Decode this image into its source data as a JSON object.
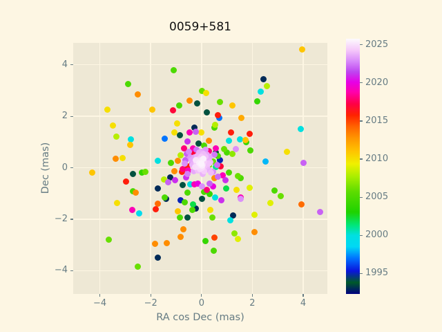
{
  "chart_data": {
    "type": "scatter",
    "title": "0059+581",
    "xlabel": "RA cos Dec (mas)",
    "ylabel": "Dec (mas)",
    "xlim": [
      -5.05,
      4.95
    ],
    "ylim": [
      -4.9,
      4.85
    ],
    "xticks": [
      -4,
      -2,
      0,
      2,
      4
    ],
    "xtick_labels": [
      "−4",
      "−2",
      "0",
      "2",
      "4"
    ],
    "yticks": [
      -4,
      -2,
      0,
      2,
      4
    ],
    "ytick_labels": [
      "−4",
      "−2",
      "0",
      "2",
      "4"
    ],
    "grid": true,
    "legend": "none",
    "colorbar": {
      "label": "",
      "vmin": 1992.3,
      "vmax": 2025.8,
      "ticks": [
        1995,
        2000,
        2005,
        2010,
        2015,
        2020,
        2025
      ],
      "tick_labels": [
        "1995",
        "2000",
        "2005",
        "2010",
        "2015",
        "2020",
        "2025"
      ],
      "colormap": "gist_ncar",
      "stops": [
        [
          0.0,
          "#000080"
        ],
        [
          0.045,
          "#005a28"
        ],
        [
          0.09,
          "#0a14dc"
        ],
        [
          0.14,
          "#0073ff"
        ],
        [
          0.185,
          "#00d8f5"
        ],
        [
          0.23,
          "#00e0e0"
        ],
        [
          0.27,
          "#00e678"
        ],
        [
          0.32,
          "#1ed200"
        ],
        [
          0.4,
          "#5cdc00"
        ],
        [
          0.46,
          "#aaee00"
        ],
        [
          0.51,
          "#f0f000"
        ],
        [
          0.56,
          "#ffc300"
        ],
        [
          0.61,
          "#ff9600"
        ],
        [
          0.655,
          "#ff6400"
        ],
        [
          0.7,
          "#ff2300"
        ],
        [
          0.745,
          "#ff0046"
        ],
        [
          0.79,
          "#ff00aa"
        ],
        [
          0.83,
          "#e600e6"
        ],
        [
          0.87,
          "#be46f0"
        ],
        [
          0.91,
          "#d787fa"
        ],
        [
          0.955,
          "#f5c8fa"
        ],
        [
          1.0,
          "#fdfafd"
        ]
      ]
    },
    "points": [
      [
        -2.9,
        3.25,
        2005
      ],
      [
        -2.5,
        2.85,
        2013
      ],
      [
        -3.7,
        2.27,
        2010
      ],
      [
        -1.95,
        2.25,
        2011
      ],
      [
        -3.5,
        1.63,
        2010
      ],
      [
        -1.1,
        3.8,
        2005
      ],
      [
        0.03,
        2.97,
        2006
      ],
      [
        0.18,
        2.89,
        2010
      ],
      [
        -0.47,
        2.6,
        2013
      ],
      [
        -0.17,
        2.5,
        1994
      ],
      [
        0.72,
        2.55,
        2006
      ],
      [
        -0.87,
        2.42,
        2005
      ],
      [
        1.22,
        2.43,
        2011
      ],
      [
        -1.12,
        2.22,
        2017
      ],
      [
        0.2,
        2.15,
        1994
      ],
      [
        0.64,
        2.05,
        2016
      ],
      [
        0.69,
        1.93,
        1997
      ],
      [
        1.57,
        1.94,
        2012
      ],
      [
        -0.96,
        1.73,
        2010
      ],
      [
        0.53,
        1.68,
        2008
      ],
      [
        -0.28,
        1.56,
        1993
      ],
      [
        0.5,
        1.56,
        2005
      ],
      [
        3.97,
        4.6,
        2011
      ],
      [
        2.43,
        3.45,
        1993
      ],
      [
        2.58,
        3.17,
        2008
      ],
      [
        2.32,
        2.96,
        2000
      ],
      [
        2.18,
        2.58,
        2004
      ],
      [
        3.9,
        1.5,
        2000
      ],
      [
        -3.34,
        1.21,
        2008
      ],
      [
        -2.79,
        1.11,
        2000
      ],
      [
        -2.82,
        0.88,
        2011
      ],
      [
        -3.38,
        0.36,
        2013
      ],
      [
        -3.12,
        0.37,
        2010
      ],
      [
        -1.45,
        1.14,
        1997
      ],
      [
        -1.72,
        0.27,
        2000
      ],
      [
        -4.3,
        -0.18,
        2011
      ],
      [
        -2.71,
        -0.25,
        1994
      ],
      [
        -2.34,
        -0.18,
        2004
      ],
      [
        -2.2,
        -0.15,
        2006
      ],
      [
        -2.96,
        -0.54,
        2016
      ],
      [
        -2.69,
        -0.92,
        2005
      ],
      [
        -2.59,
        -0.97,
        2013
      ],
      [
        -3.33,
        -1.36,
        2010
      ],
      [
        -1.71,
        -0.8,
        1993
      ],
      [
        -1.48,
        -0.45,
        2008
      ],
      [
        -1.44,
        -1.14,
        2005
      ],
      [
        -1.72,
        -1.4,
        2014
      ],
      [
        1.88,
        1.32,
        2016
      ],
      [
        1.74,
        1.07,
        2011
      ],
      [
        1.76,
        0.99,
        2004
      ],
      [
        1.93,
        0.66,
        2005
      ],
      [
        3.37,
        0.62,
        2010
      ],
      [
        2.53,
        0.24,
        1998
      ],
      [
        4.0,
        0.2,
        2022
      ],
      [
        1.88,
        -0.79,
        2009
      ],
      [
        2.87,
        -0.89,
        2005
      ],
      [
        3.12,
        -1.11,
        2006
      ],
      [
        2.7,
        -1.38,
        2009
      ],
      [
        3.92,
        -1.42,
        2014
      ],
      [
        1.55,
        -1.16,
        2019
      ],
      [
        1.55,
        -0.41,
        2005
      ],
      [
        -2.73,
        -1.64,
        2019
      ],
      [
        -2.46,
        -1.77,
        1999
      ],
      [
        -1.8,
        -1.6,
        2016
      ],
      [
        -3.66,
        -2.79,
        2006
      ],
      [
        -1.84,
        -2.94,
        2013
      ],
      [
        -1.73,
        -3.48,
        1993
      ],
      [
        -2.51,
        -3.84,
        2006
      ],
      [
        -0.93,
        -1.7,
        2011
      ],
      [
        -0.35,
        -1.63,
        2005
      ],
      [
        -0.24,
        -1.59,
        1993
      ],
      [
        0.35,
        -1.63,
        2010
      ],
      [
        -0.86,
        -1.94,
        2005
      ],
      [
        -0.55,
        -1.93,
        1994
      ],
      [
        0.42,
        -1.92,
        2006
      ],
      [
        1.23,
        -1.84,
        1993
      ],
      [
        1.14,
        -2.04,
        2000
      ],
      [
        -0.71,
        -2.38,
        2013
      ],
      [
        1.29,
        -2.55,
        2007
      ],
      [
        -0.83,
        -2.68,
        2013
      ],
      [
        0.52,
        -2.71,
        2015
      ],
      [
        1.42,
        -2.77,
        2009
      ],
      [
        -1.36,
        -2.93,
        2013
      ],
      [
        0.16,
        -2.84,
        2004
      ],
      [
        0.49,
        -3.22,
        2005
      ],
      [
        2.09,
        -1.83,
        2009
      ],
      [
        4.67,
        -1.71,
        2022
      ],
      [
        2.09,
        -2.49,
        2013
      ],
      [
        -1.08,
        1.36,
        2010
      ],
      [
        -0.85,
        1.27,
        1994
      ],
      [
        -0.47,
        1.36,
        2019
      ],
      [
        -0.24,
        1.39,
        2022
      ],
      [
        -0.02,
        1.37,
        2010
      ],
      [
        -0.55,
        1.01,
        2021
      ],
      [
        -0.12,
        0.95,
        1994
      ],
      [
        0.09,
        0.87,
        2005
      ],
      [
        -0.34,
        0.76,
        2019
      ],
      [
        -0.59,
        0.55,
        2022
      ],
      [
        -0.83,
        0.48,
        2008
      ],
      [
        -0.63,
        0.3,
        2022
      ],
      [
        -0.94,
        0.26,
        2013
      ],
      [
        -1.21,
        0.18,
        2005
      ],
      [
        -0.56,
        0.06,
        2016
      ],
      [
        -0.36,
        0.17,
        2021
      ],
      [
        1.17,
        1.36,
        2016
      ],
      [
        0.28,
        1.05,
        2013
      ],
      [
        1.09,
        1.06,
        2000
      ],
      [
        1.52,
        1.11,
        2000
      ],
      [
        0.88,
        0.74,
        2006
      ],
      [
        1.35,
        0.74,
        2023
      ],
      [
        0.99,
        0.59,
        2005
      ],
      [
        1.22,
        0.53,
        2007
      ],
      [
        0.56,
        0.6,
        1994
      ],
      [
        0.64,
        0.45,
        2005
      ],
      [
        0.72,
        0.3,
        1995
      ],
      [
        0.45,
        0.24,
        2006
      ],
      [
        0.28,
        0.08,
        2006
      ],
      [
        0.55,
        0.04,
        2001
      ],
      [
        0.2,
        0.38,
        2019
      ],
      [
        -1.06,
        -0.13,
        2013
      ],
      [
        -0.78,
        -0.16,
        2016
      ],
      [
        -0.53,
        -0.1,
        2019
      ],
      [
        -0.6,
        -0.37,
        2021
      ],
      [
        -1.32,
        -0.57,
        2022
      ],
      [
        -1.03,
        -0.49,
        2021
      ],
      [
        -1.23,
        -0.37,
        1993
      ],
      [
        -0.73,
        -0.68,
        1994
      ],
      [
        -0.45,
        -0.64,
        2000
      ],
      [
        -0.29,
        -0.64,
        2019
      ],
      [
        -0.14,
        -0.61,
        2020
      ],
      [
        0.02,
        -0.73,
        2023
      ],
      [
        -0.56,
        -0.97,
        2005
      ],
      [
        0.09,
        -0.94,
        2005
      ],
      [
        -1.4,
        -1.2,
        1993
      ],
      [
        -0.83,
        -1.25,
        1995
      ],
      [
        -0.66,
        -1.34,
        2005
      ],
      [
        -0.34,
        -1.41,
        2002
      ],
      [
        0.02,
        -1.2,
        1994
      ],
      [
        0.38,
        -0.19,
        2024
      ],
      [
        0.82,
        -0.3,
        2019
      ],
      [
        1.08,
        -0.18,
        2005
      ],
      [
        1.42,
        -0.32,
        2006
      ],
      [
        0.52,
        -0.41,
        2013
      ],
      [
        0.95,
        -0.49,
        2021
      ],
      [
        0.31,
        -0.61,
        2022
      ],
      [
        0.45,
        -0.73,
        2020
      ],
      [
        0.96,
        -0.81,
        2002
      ],
      [
        1.37,
        -0.86,
        2010
      ],
      [
        0.2,
        -0.86,
        2018
      ],
      [
        0.31,
        -1.03,
        2004
      ],
      [
        0.54,
        -1.15,
        2000
      ],
      [
        0.79,
        -1.27,
        2021
      ],
      [
        1.53,
        -1.2,
        2023
      ],
      [
        0.5,
        0.5,
        2022.5
      ],
      [
        -0.5,
        0.62,
        2022.8
      ],
      [
        0.62,
        0.12,
        2022.3
      ],
      [
        -0.55,
        -0.25,
        2022.6
      ],
      [
        0.45,
        -0.15,
        2022.9
      ],
      [
        -0.2,
        0.7,
        2022.4
      ],
      [
        0.15,
        0.7,
        2023.2
      ],
      [
        -0.65,
        0.15,
        2023.0
      ],
      [
        0.65,
        -0.35,
        2022.2
      ],
      [
        -0.45,
        0.4,
        2023.1
      ],
      [
        0.3,
        0.65,
        2018
      ],
      [
        -0.3,
        0.55,
        2017
      ],
      [
        0.55,
        0.75,
        2019
      ],
      [
        -0.7,
        0.75,
        2018
      ],
      [
        0.75,
        0.05,
        2017
      ],
      [
        -0.75,
        -0.05,
        2018
      ],
      [
        -0.05,
        0.1,
        2025.3
      ],
      [
        0.0,
        0.2,
        2025.1
      ],
      [
        0.05,
        0.1,
        2024.8
      ],
      [
        -0.1,
        0.2,
        2025.4
      ],
      [
        0.1,
        0.25,
        2024.5
      ],
      [
        -0.15,
        0.05,
        2025.0
      ],
      [
        0.03,
        0.0,
        2024.9
      ],
      [
        -0.02,
        0.3,
        2025.2
      ],
      [
        0.12,
        0.08,
        2024.2
      ],
      [
        -0.12,
        0.32,
        2024.6
      ],
      [
        0.07,
        0.35,
        2025.5
      ],
      [
        -0.2,
        0.18,
        2024.4
      ],
      [
        0.18,
        0.2,
        2024.0
      ],
      [
        -0.06,
        -0.06,
        2024.7
      ],
      [
        0.0,
        0.42,
        2024.3
      ],
      [
        -0.22,
        0.3,
        2025.1
      ],
      [
        0.22,
        0.05,
        2023.9
      ],
      [
        -0.08,
        0.5,
        2023.8
      ],
      [
        0.15,
        0.42,
        2024.1
      ],
      [
        -0.25,
        0.02,
        2024.9
      ],
      [
        0.25,
        0.3,
        2023.7
      ],
      [
        -0.3,
        0.22,
        2023.6
      ],
      [
        0.06,
        0.55,
        2024.0
      ],
      [
        -0.18,
        0.45,
        2023.9
      ],
      [
        0.3,
        0.15,
        2024.2
      ],
      [
        -0.02,
        0.15,
        2025.6
      ],
      [
        0.02,
        0.08,
        2025.4
      ],
      [
        -0.28,
        0.4,
        2023.5
      ],
      [
        0.2,
        0.5,
        2023.6
      ],
      [
        -0.35,
        0.1,
        2023.8
      ],
      [
        0.33,
        0.4,
        2023.5
      ],
      [
        0.1,
        -0.12,
        2024.4
      ],
      [
        -0.15,
        -0.1,
        2024.1
      ],
      [
        0.28,
        -0.08,
        2023.7
      ],
      [
        -0.32,
        -0.12,
        2023.6
      ],
      [
        0.0,
        0.62,
        2023.5
      ],
      [
        -0.1,
        0.6,
        2023.7
      ],
      [
        0.35,
        0.22,
        2023.9
      ],
      [
        -0.4,
        0.3,
        2023.5
      ],
      [
        0.05,
        -0.25,
        2023.8
      ]
    ]
  },
  "style": {
    "figure_bg": "#fdf6e3",
    "axes_bg": "#eee8d5",
    "grid_color": "#fdf6e3",
    "tick_color": "#657b83",
    "label_color": "#657b83",
    "title_color": "#111111"
  }
}
